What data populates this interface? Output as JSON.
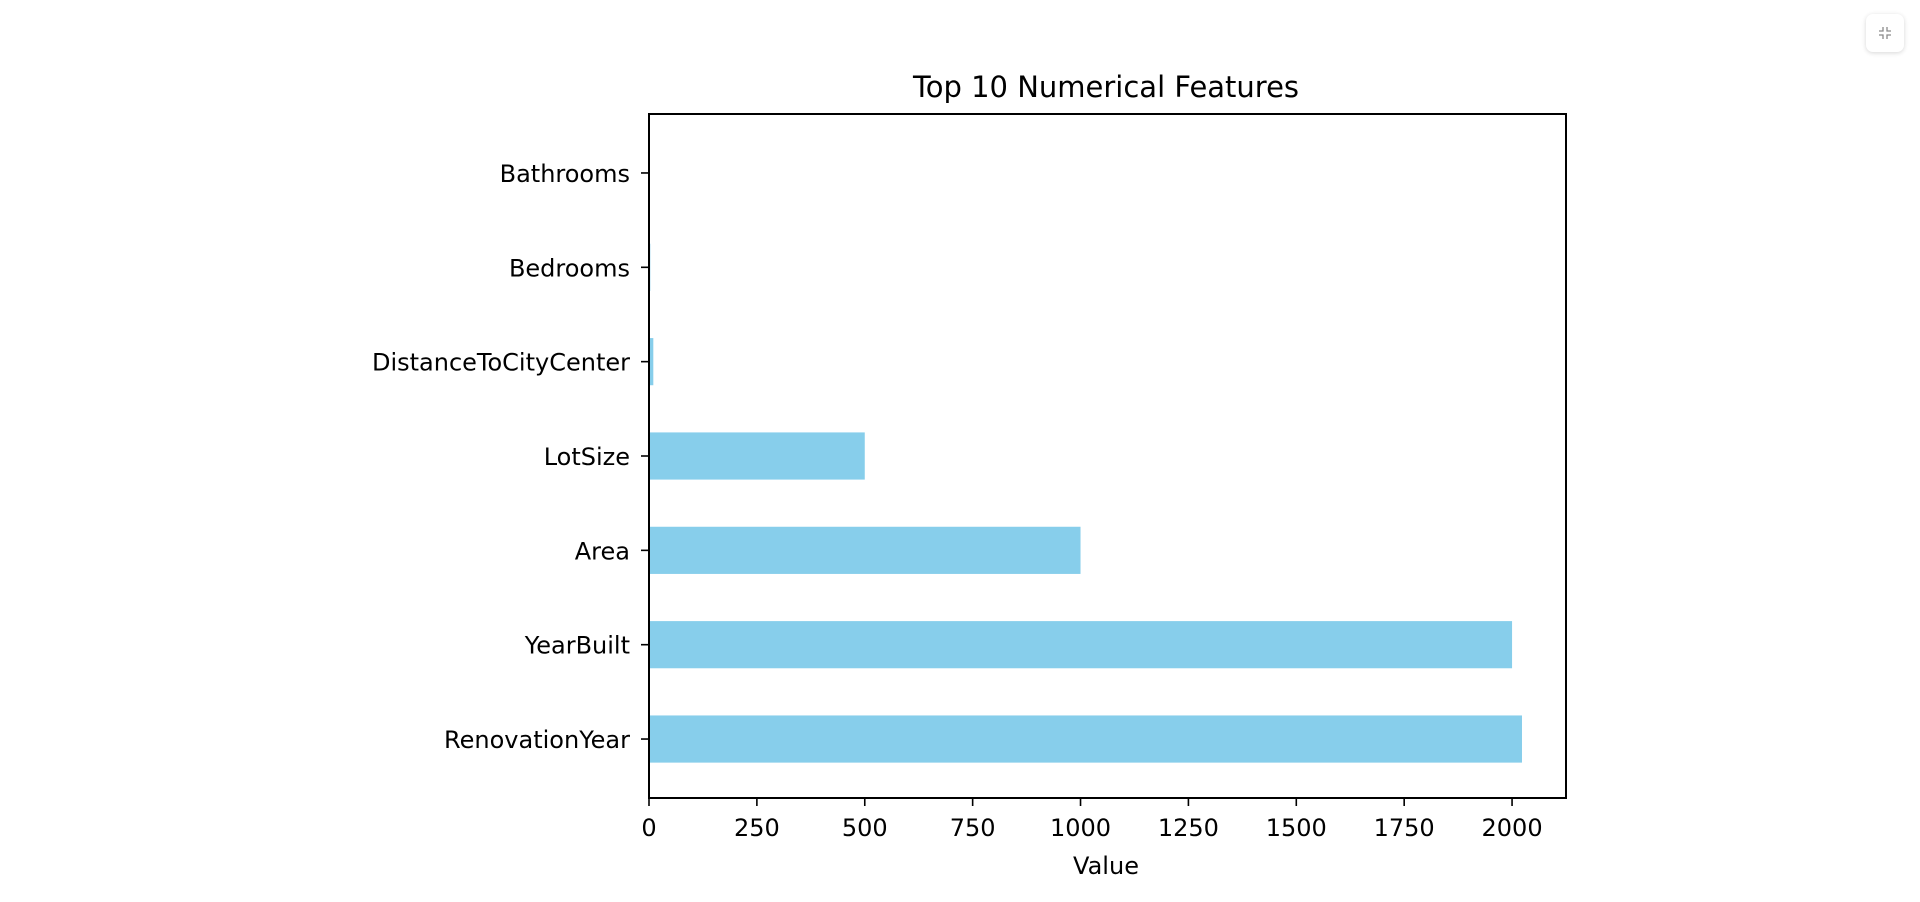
{
  "colors": {
    "bar": "#87ceeb",
    "axis": "#000000",
    "background": "#ffffff"
  },
  "toolbar": {
    "collapse_icon": "collapse-icon"
  },
  "chart_data": {
    "type": "bar",
    "orientation": "horizontal",
    "title": "Top 10 Numerical Features",
    "xlabel": "Value",
    "ylabel": "",
    "categories": [
      "RenovationYear",
      "YearBuilt",
      "Area",
      "LotSize",
      "DistanceToCityCenter",
      "Bedrooms",
      "Bathrooms"
    ],
    "values": [
      2023,
      2000,
      1000,
      500,
      10,
      3,
      2
    ],
    "xlim": [
      0,
      2125
    ],
    "xticks": [
      0,
      250,
      500,
      750,
      1000,
      1250,
      1500,
      1750,
      2000
    ],
    "grid": false,
    "legend": "none"
  }
}
